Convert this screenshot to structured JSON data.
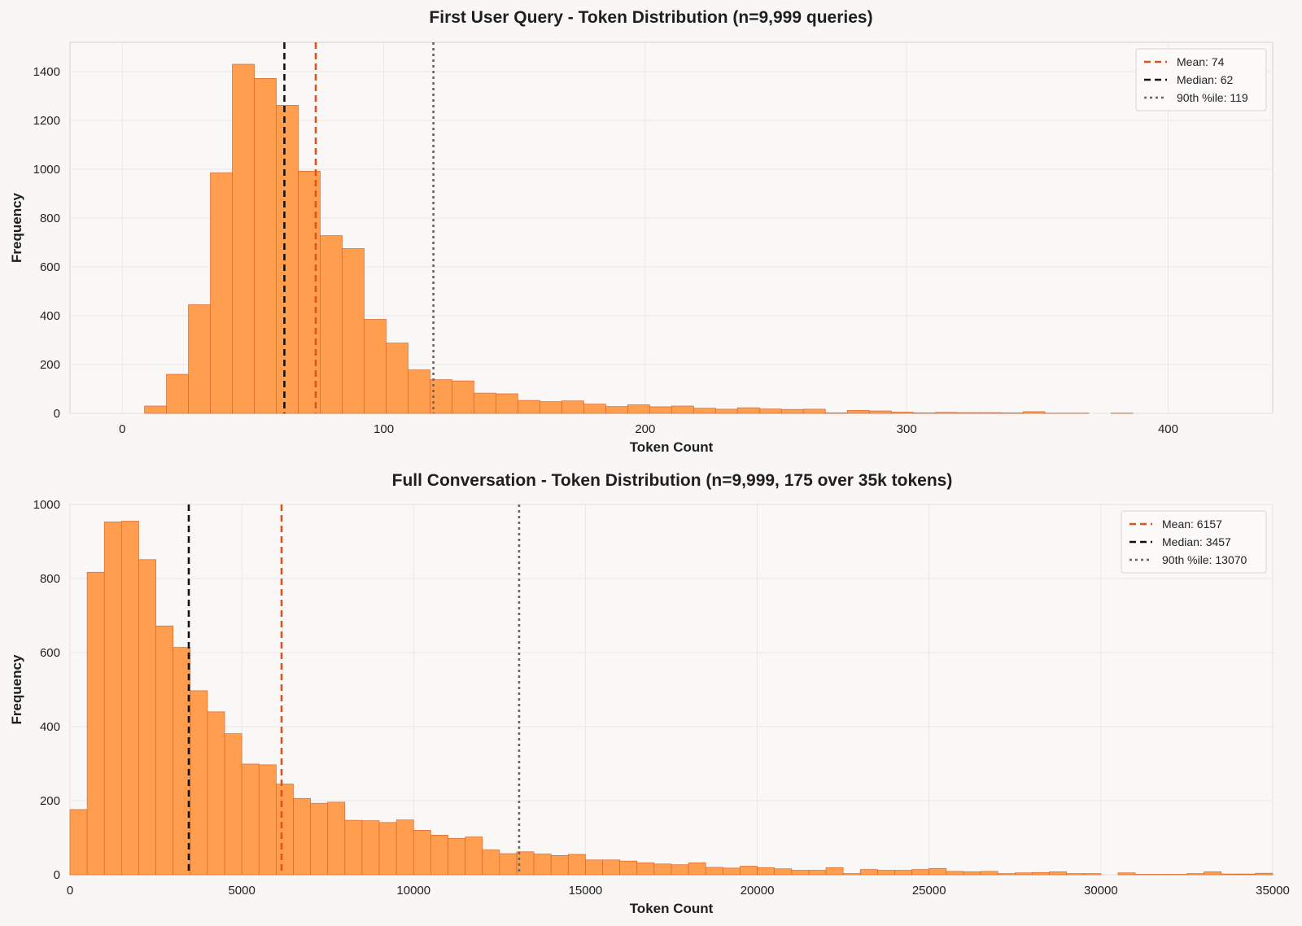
{
  "colors": {
    "bar": "#ff9e4f",
    "bar_edge": "#d9652a",
    "mean": "#e0521c",
    "median": "#111111",
    "p90": "#666666"
  },
  "chart_data": [
    {
      "type": "bar",
      "title": "First User Query - Token Distribution (n=9,999 queries)",
      "xlabel": "Token Count",
      "ylabel": "Frequency",
      "xlim": [
        -20,
        440
      ],
      "ylim": [
        0,
        1520
      ],
      "xticks": [
        0,
        100,
        200,
        300,
        400
      ],
      "yticks": [
        0,
        200,
        400,
        600,
        800,
        1000,
        1200,
        1400
      ],
      "bin_start": 8.5,
      "bin_width": 8.4,
      "values": [
        30,
        160,
        445,
        985,
        1430,
        1372,
        1262,
        992,
        728,
        675,
        385,
        288,
        178,
        138,
        133,
        83,
        80,
        53,
        48,
        51,
        38,
        28,
        35,
        27,
        30,
        21,
        17,
        23,
        18,
        16,
        17,
        2,
        12,
        10,
        5,
        2,
        4,
        3,
        3,
        2,
        7,
        1,
        1,
        0,
        1,
        0,
        0,
        0,
        0,
        0
      ],
      "grid": true,
      "legend_position": "top-right",
      "reference_lines": [
        {
          "label": "Mean: 74",
          "x": 74,
          "style": "mean"
        },
        {
          "label": "Median: 62",
          "x": 62,
          "style": "median"
        },
        {
          "label": "90th %ile: 119",
          "x": 119,
          "style": "p90"
        }
      ]
    },
    {
      "type": "bar",
      "title": "Full Conversation - Token Distribution (n=9,999, 175 over 35k tokens)",
      "xlabel": "Token Count",
      "ylabel": "Frequency",
      "xlim": [
        0,
        35000
      ],
      "ylim": [
        0,
        1000
      ],
      "xticks": [
        0,
        5000,
        10000,
        15000,
        20000,
        25000,
        30000,
        35000
      ],
      "yticks": [
        0,
        200,
        400,
        600,
        800,
        1000
      ],
      "bin_start": 0,
      "bin_width": 500,
      "values": [
        176,
        817,
        953,
        955,
        851,
        672,
        614,
        497,
        440,
        381,
        299,
        297,
        245,
        206,
        193,
        196,
        147,
        146,
        141,
        148,
        120,
        107,
        98,
        102,
        67,
        57,
        62,
        56,
        52,
        55,
        40,
        40,
        37,
        32,
        29,
        27,
        32,
        20,
        18,
        23,
        19,
        16,
        12,
        12,
        19,
        3,
        14,
        12,
        12,
        14,
        17,
        9,
        8,
        9,
        3,
        5,
        6,
        8,
        3,
        3,
        0,
        5,
        1,
        1,
        1,
        3,
        8,
        2,
        2,
        4
      ],
      "grid": true,
      "legend_position": "top-right",
      "reference_lines": [
        {
          "label": "Mean: 6157",
          "x": 6157,
          "style": "mean"
        },
        {
          "label": "Median: 3457",
          "x": 3457,
          "style": "median"
        },
        {
          "label": "90th %ile: 13070",
          "x": 13070,
          "style": "p90"
        }
      ]
    }
  ]
}
